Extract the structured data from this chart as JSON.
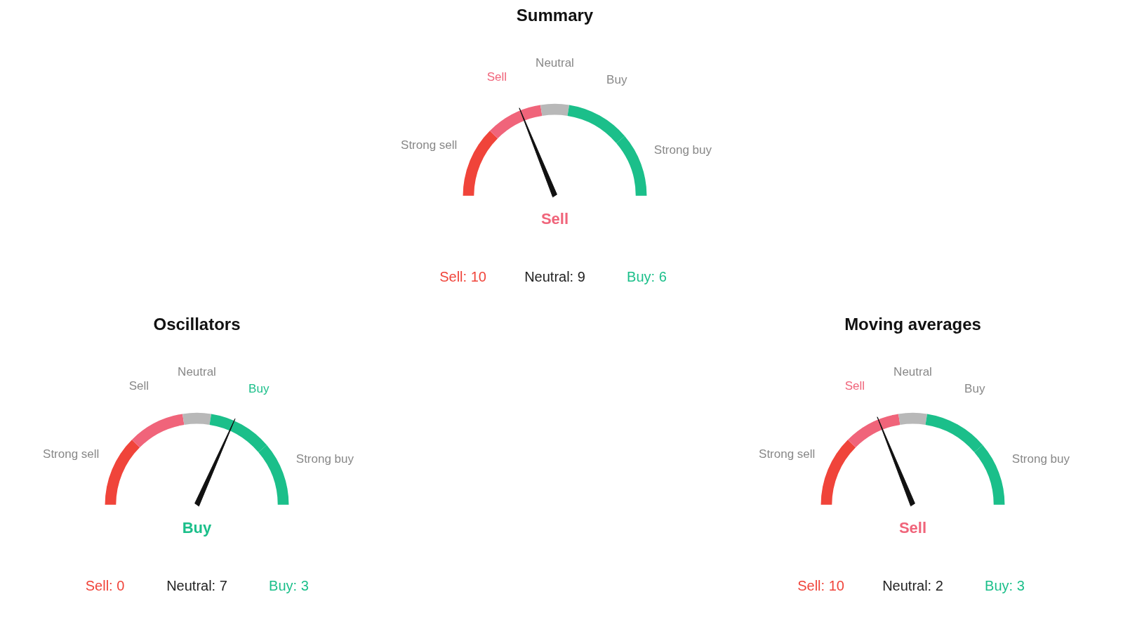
{
  "chart_data": [
    {
      "type": "donut",
      "title": "Summary",
      "categories": [
        "Strong sell",
        "Sell",
        "Neutral",
        "Buy",
        "Strong buy"
      ],
      "values": [
        25,
        20,
        10,
        22.5,
        22.5
      ],
      "colors": [
        "#f0443a",
        "#f0647a",
        "#b8b8b8",
        "#1bbf8a",
        "#1bbf8a"
      ],
      "needle": "Sell",
      "annotations": [
        "Sell",
        "Sell: 10",
        "Neutral: 9",
        "Buy: 6"
      ]
    },
    {
      "type": "donut",
      "title": "Oscillators",
      "categories": [
        "Strong sell",
        "Sell",
        "Neutral",
        "Buy",
        "Strong buy"
      ],
      "values": [
        25,
        20,
        10,
        22.5,
        22.5
      ],
      "colors": [
        "#f0443a",
        "#f0647a",
        "#b8b8b8",
        "#1bbf8a",
        "#1bbf8a"
      ],
      "needle": "Buy",
      "annotations": [
        "Buy",
        "Sell: 0",
        "Neutral: 7",
        "Buy: 3"
      ]
    },
    {
      "type": "donut",
      "title": "Moving averages",
      "categories": [
        "Strong sell",
        "Sell",
        "Neutral",
        "Buy",
        "Strong buy"
      ],
      "values": [
        25,
        20,
        10,
        22.5,
        22.5
      ],
      "colors": [
        "#f0443a",
        "#f0647a",
        "#b8b8b8",
        "#1bbf8a",
        "#1bbf8a"
      ],
      "needle": "Sell",
      "annotations": [
        "Sell",
        "Sell: 10",
        "Neutral: 2",
        "Buy: 3"
      ]
    }
  ]
}
